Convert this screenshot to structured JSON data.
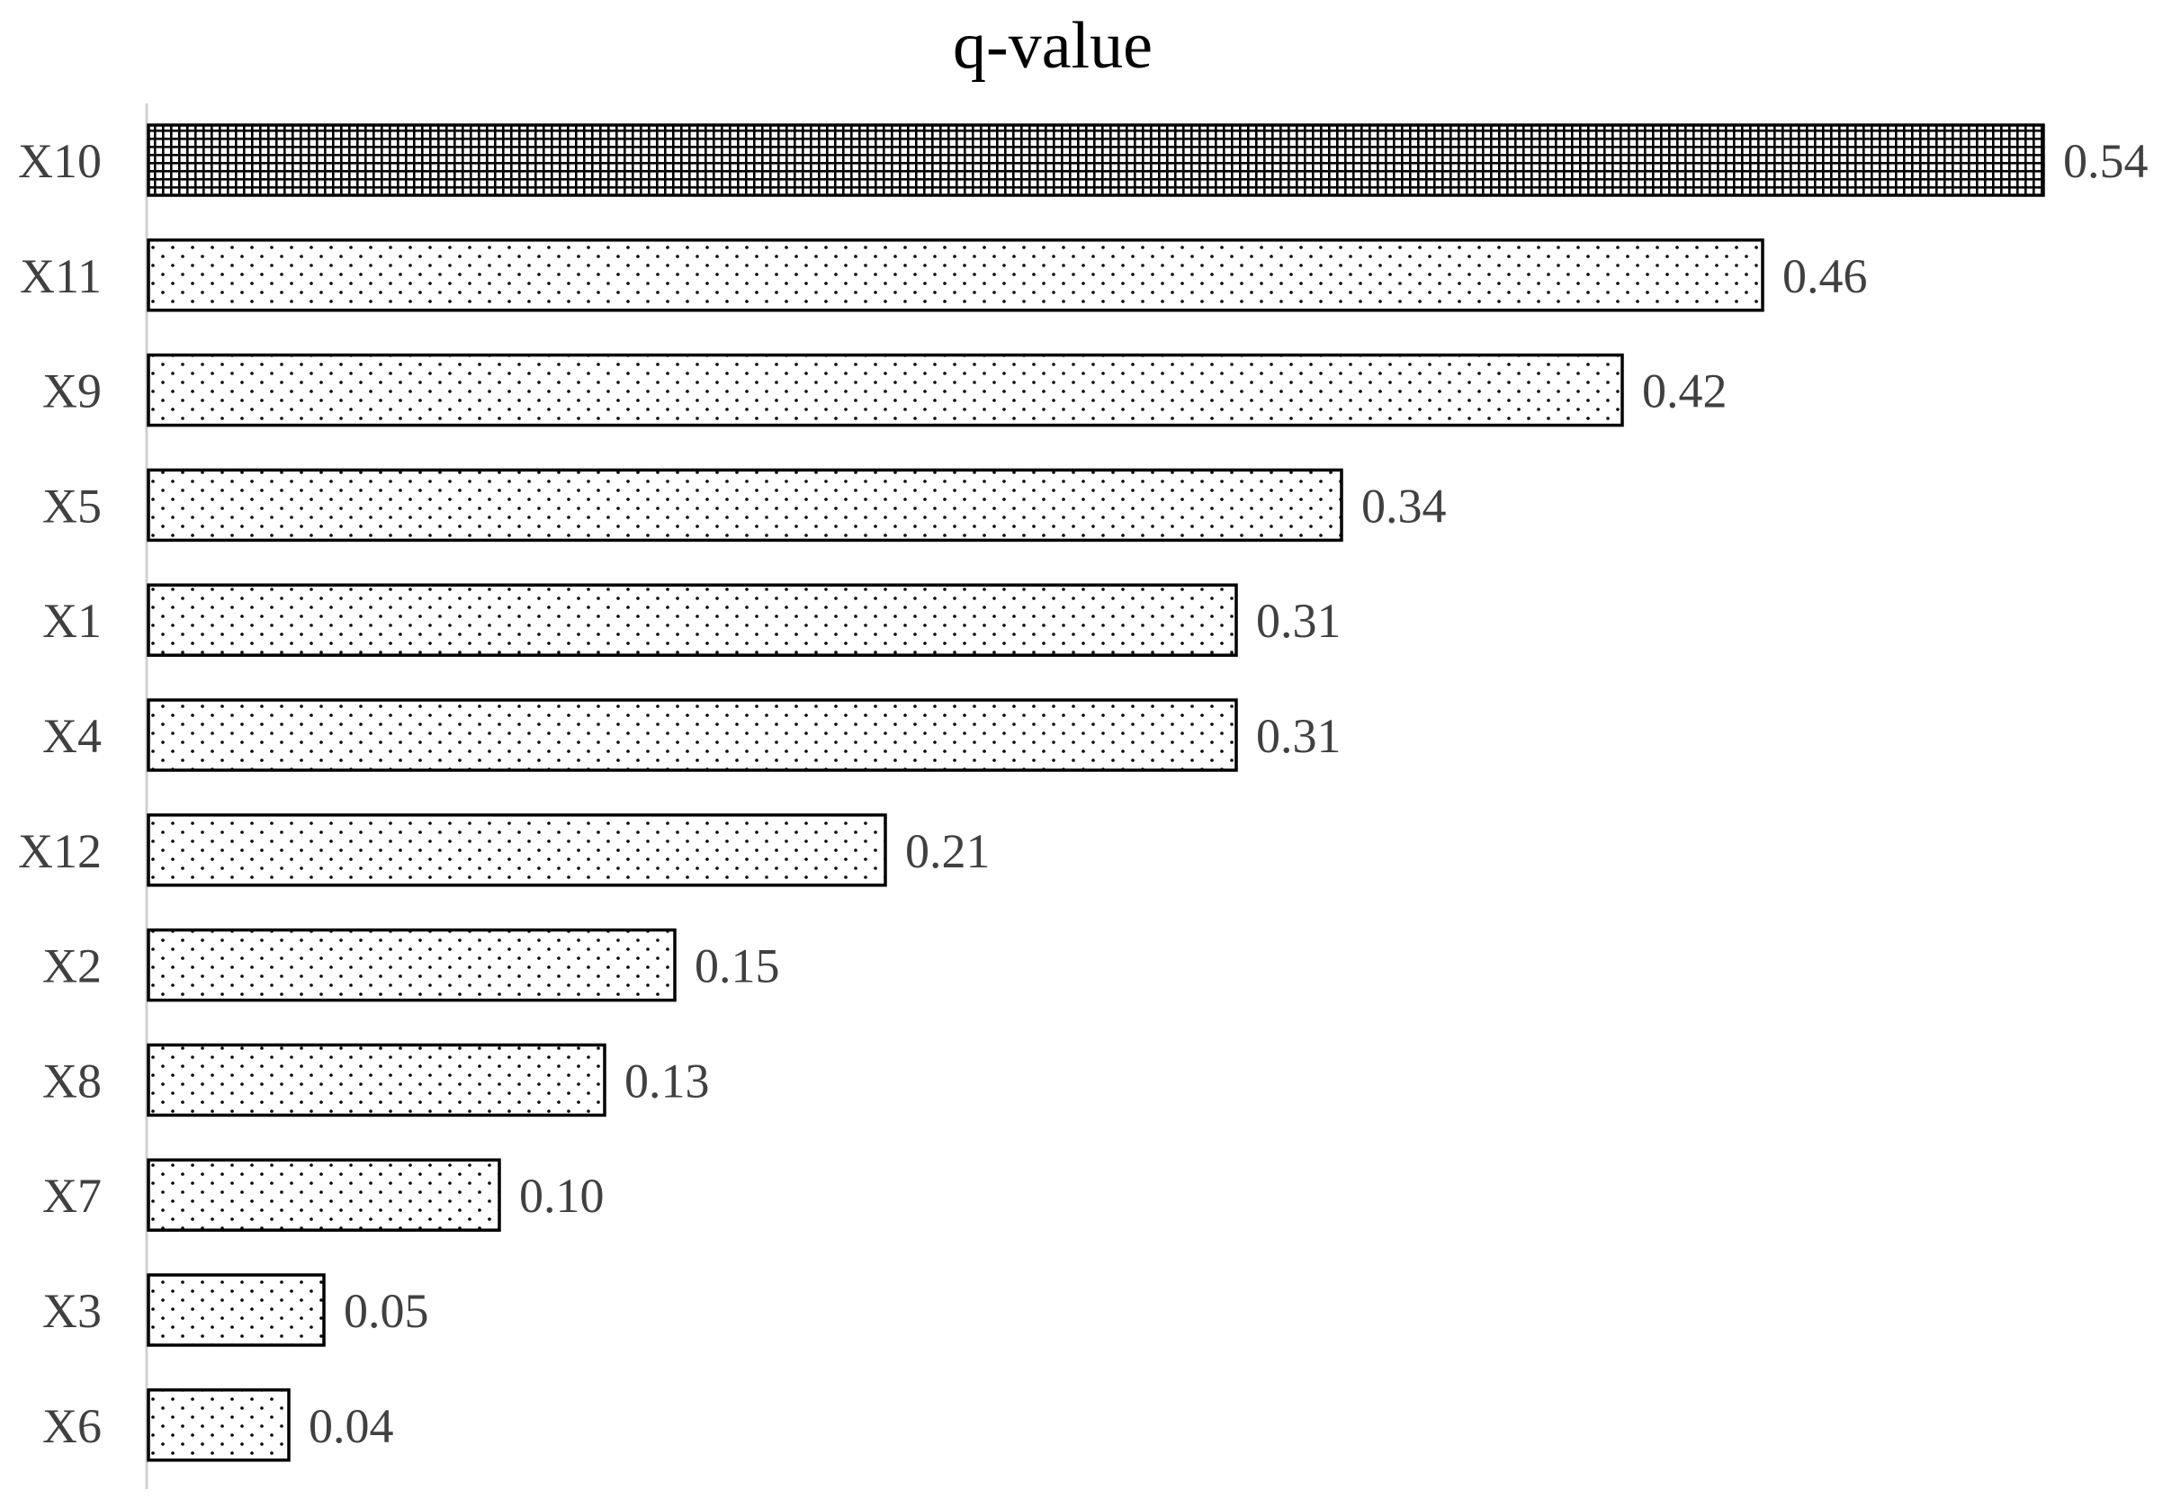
{
  "chart_data": {
    "type": "bar",
    "orientation": "horizontal",
    "title": "q-value",
    "xlabel": "",
    "ylabel": "",
    "categories": [
      "X10",
      "X11",
      "X9",
      "X5",
      "X1",
      "X4",
      "X12",
      "X2",
      "X8",
      "X7",
      "X3",
      "X6"
    ],
    "values": [
      0.54,
      0.46,
      0.42,
      0.34,
      0.31,
      0.31,
      0.21,
      0.15,
      0.13,
      0.1,
      0.05,
      0.04
    ],
    "value_labels": [
      "0.54",
      "0.46",
      "0.42",
      "0.34",
      "0.31",
      "0.31",
      "0.21",
      "0.15",
      "0.13",
      "0.10",
      "0.05",
      "0.04"
    ],
    "highlight_category": "X10",
    "patterns": {
      "highlight": "crosshatch",
      "default": "dots"
    },
    "xlim": [
      0,
      0.54
    ],
    "grid": false,
    "legend": "none",
    "colors": {
      "bar_outline": "#000000",
      "pattern_ink": "#000000",
      "label_text": "#404040",
      "title_text": "#000000",
      "axis_line": "#d0d0d0"
    }
  }
}
